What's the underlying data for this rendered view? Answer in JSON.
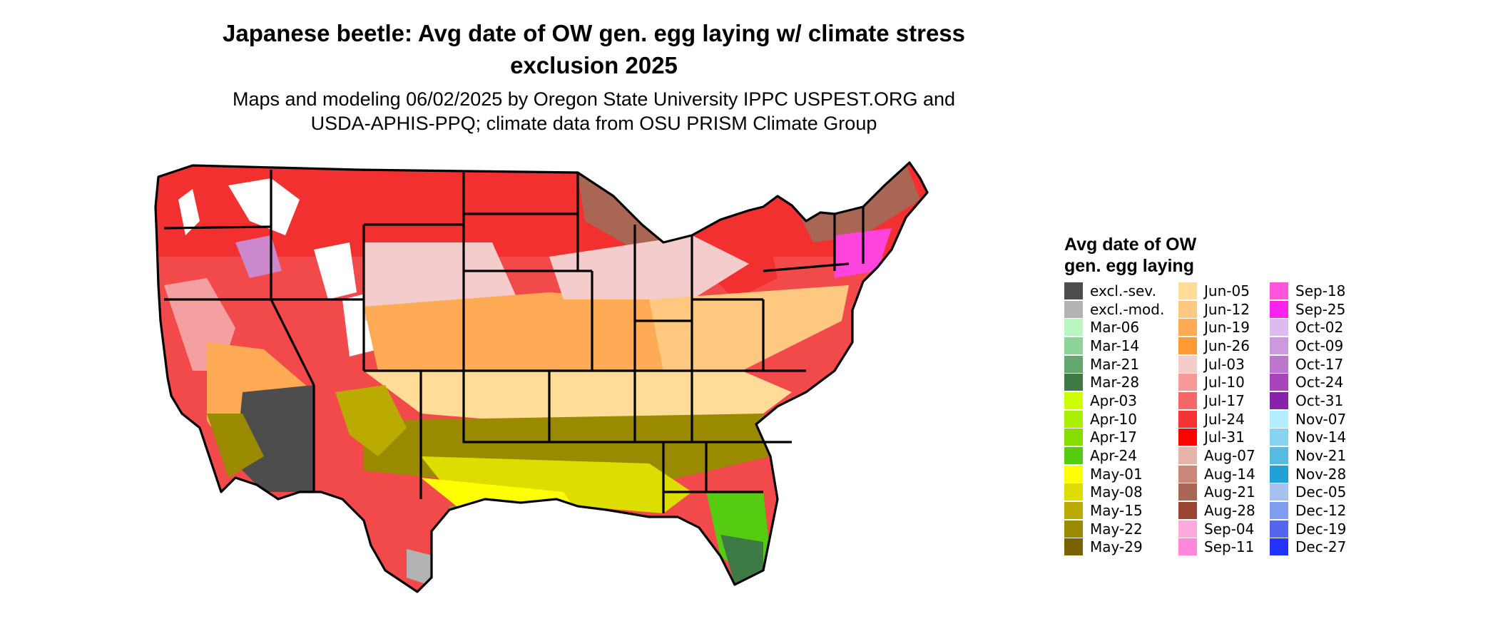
{
  "title_line1": "Japanese beetle: Avg date of OW gen. egg laying w/ climate stress",
  "title_line2": "exclusion 2025",
  "subtitle_line1": "Maps and modeling 06/02/2025 by Oregon State University IPPC USPEST.ORG and",
  "subtitle_line2": "USDA-APHIS-PPQ; climate data from OSU PRISM Climate Group",
  "legend": {
    "title_line1": "Avg date of OW",
    "title_line2": "gen. egg laying",
    "items": [
      {
        "label": "excl.-sev.",
        "color": "#4d4d4d"
      },
      {
        "label": "excl.-mod.",
        "color": "#b3b3b3"
      },
      {
        "label": "Mar-06",
        "color": "#b8f7c2"
      },
      {
        "label": "Mar-14",
        "color": "#8ed39a"
      },
      {
        "label": "Mar-21",
        "color": "#62a76d"
      },
      {
        "label": "Mar-28",
        "color": "#3e7a46"
      },
      {
        "label": "Apr-03",
        "color": "#ccff00"
      },
      {
        "label": "Apr-10",
        "color": "#aaee00"
      },
      {
        "label": "Apr-17",
        "color": "#88dd00"
      },
      {
        "label": "Apr-24",
        "color": "#55cc11"
      },
      {
        "label": "May-01",
        "color": "#ffff00"
      },
      {
        "label": "May-08",
        "color": "#dddd00"
      },
      {
        "label": "May-15",
        "color": "#bbaa00"
      },
      {
        "label": "May-22",
        "color": "#9a8a00"
      },
      {
        "label": "May-29",
        "color": "#7a6200"
      },
      {
        "label": "Jun-05",
        "color": "#ffdd99"
      },
      {
        "label": "Jun-12",
        "color": "#ffc880"
      },
      {
        "label": "Jun-19",
        "color": "#ffaa55"
      },
      {
        "label": "Jun-26",
        "color": "#ff9933"
      },
      {
        "label": "Jul-03",
        "color": "#f5cccc"
      },
      {
        "label": "Jul-10",
        "color": "#f59999"
      },
      {
        "label": "Jul-17",
        "color": "#f56666"
      },
      {
        "label": "Jul-24",
        "color": "#f53333"
      },
      {
        "label": "Jul-31",
        "color": "#ff0000"
      },
      {
        "label": "Aug-07",
        "color": "#e8b3aa"
      },
      {
        "label": "Aug-14",
        "color": "#cc8877"
      },
      {
        "label": "Aug-21",
        "color": "#aa6655"
      },
      {
        "label": "Aug-28",
        "color": "#994433"
      },
      {
        "label": "Sep-04",
        "color": "#ffaadd"
      },
      {
        "label": "Sep-11",
        "color": "#ff88dd"
      },
      {
        "label": "Sep-18",
        "color": "#ff55dd"
      },
      {
        "label": "Sep-25",
        "color": "#ff22ee"
      },
      {
        "label": "Oct-02",
        "color": "#ddbbee"
      },
      {
        "label": "Oct-09",
        "color": "#cc99dd"
      },
      {
        "label": "Oct-17",
        "color": "#bb77cc"
      },
      {
        "label": "Oct-24",
        "color": "#aa44bb"
      },
      {
        "label": "Oct-31",
        "color": "#8822aa"
      },
      {
        "label": "Nov-07",
        "color": "#b3eeff"
      },
      {
        "label": "Nov-14",
        "color": "#88d4f0"
      },
      {
        "label": "Nov-21",
        "color": "#55bbe0"
      },
      {
        "label": "Nov-28",
        "color": "#22a0d8"
      },
      {
        "label": "Dec-05",
        "color": "#a8c0ee"
      },
      {
        "label": "Dec-12",
        "color": "#7f9ef0"
      },
      {
        "label": "Dec-19",
        "color": "#5566ee"
      },
      {
        "label": "Dec-27",
        "color": "#2233ff"
      }
    ]
  }
}
